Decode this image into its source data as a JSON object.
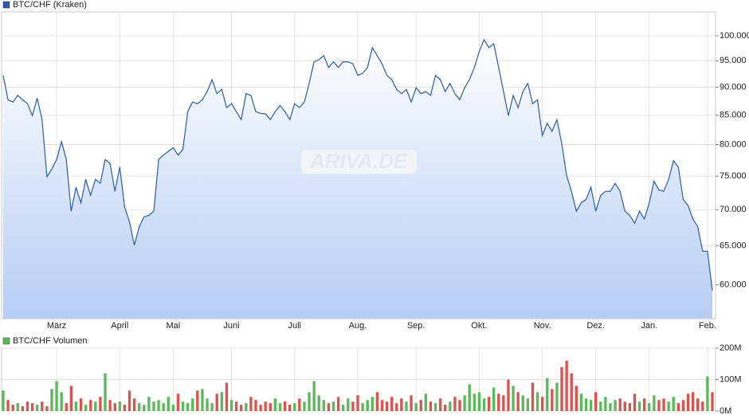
{
  "chart_data": [
    {
      "type": "line",
      "watermark": "ARIVA.DE",
      "log_scale": true,
      "grid": true,
      "legend": "top-left",
      "categories": [
        null,
        null,
        null,
        null,
        null,
        null,
        null,
        null,
        null,
        null,
        null,
        "März",
        null,
        null,
        null,
        null,
        null,
        null,
        null,
        null,
        null,
        null,
        null,
        null,
        "April",
        null,
        null,
        null,
        null,
        null,
        null,
        null,
        null,
        null,
        null,
        "Mai",
        null,
        null,
        null,
        null,
        null,
        null,
        null,
        null,
        null,
        null,
        null,
        "Juni",
        null,
        null,
        null,
        null,
        null,
        null,
        null,
        null,
        null,
        null,
        null,
        null,
        "Juli",
        null,
        null,
        null,
        null,
        null,
        null,
        null,
        null,
        null,
        null,
        null,
        null,
        "Aug.",
        null,
        null,
        null,
        null,
        null,
        null,
        null,
        null,
        null,
        null,
        null,
        "Sep.",
        null,
        null,
        null,
        null,
        null,
        null,
        null,
        null,
        null,
        null,
        null,
        null,
        "Okt.",
        null,
        null,
        null,
        null,
        null,
        null,
        null,
        null,
        null,
        null,
        null,
        null,
        "Nov.",
        null,
        null,
        null,
        null,
        null,
        null,
        null,
        null,
        null,
        null,
        "Dez.",
        null,
        null,
        null,
        null,
        null,
        null,
        null,
        null,
        null,
        null,
        "Jan.",
        null,
        null,
        null,
        null,
        null,
        null,
        null,
        null,
        null,
        null,
        null,
        "Feb.",
        null
      ],
      "series": [
        {
          "name": "BTC/CHF (Kraken)",
          "color": "#2a5caa",
          "values": [
            92200,
            87700,
            87300,
            88500,
            87700,
            87000,
            84900,
            88000,
            84200,
            74900,
            76100,
            77600,
            80500,
            77600,
            69800,
            73300,
            71000,
            74500,
            72100,
            74500,
            73900,
            77600,
            77000,
            72700,
            76400,
            70400,
            68300,
            65100,
            67600,
            69000,
            69200,
            69800,
            77600,
            78300,
            78900,
            79500,
            78300,
            79200,
            85600,
            87300,
            87000,
            87700,
            89200,
            91400,
            88800,
            89600,
            86300,
            87000,
            85600,
            84200,
            88800,
            88500,
            85600,
            85300,
            85200,
            84200,
            85600,
            86700,
            85600,
            84200,
            87000,
            86300,
            87300,
            90700,
            94800,
            95200,
            96000,
            93700,
            94800,
            93700,
            94800,
            94800,
            94400,
            92200,
            92600,
            93700,
            97600,
            96000,
            94400,
            92200,
            91400,
            89600,
            88800,
            89600,
            87300,
            89900,
            88800,
            89200,
            88500,
            92200,
            91400,
            89200,
            90700,
            88800,
            87700,
            89900,
            91400,
            93700,
            96800,
            99200,
            97600,
            98400,
            93700,
            89200,
            84900,
            88500,
            86300,
            89200,
            90700,
            87000,
            87700,
            81500,
            83600,
            82200,
            84200,
            80200,
            75100,
            72700,
            69800,
            71000,
            71500,
            73300,
            69800,
            72100,
            72700,
            72700,
            73900,
            72700,
            69800,
            69200,
            68100,
            69800,
            68700,
            71000,
            74200,
            72900,
            72700,
            74500,
            77400,
            76400,
            71500,
            70600,
            68700,
            67600,
            64300,
            64300,
            59300
          ]
        }
      ],
      "ylim": [
        56000,
        105000
      ],
      "yticks": [
        {
          "value": 60000,
          "label": "60.000"
        },
        {
          "value": 65000,
          "label": "65.000"
        },
        {
          "value": 70000,
          "label": "70.000"
        },
        {
          "value": 75000,
          "label": "75.000"
        },
        {
          "value": 80000,
          "label": "80.000"
        },
        {
          "value": 85000,
          "label": "85.000"
        },
        {
          "value": 90000,
          "label": "90.000"
        },
        {
          "value": 95000,
          "label": "95.000"
        },
        {
          "value": 100000,
          "label": "100.000"
        }
      ]
    },
    {
      "type": "bar",
      "grid": true,
      "legend": "top-left",
      "down_color": "#d9534f",
      "series": [
        {
          "name": "BTC/CHF Volumen",
          "color": "#5cb85c",
          "values": [
            65,
            35,
            20,
            25,
            15,
            30,
            25,
            20,
            30,
            15,
            70,
            95,
            60,
            25,
            80,
            30,
            40,
            20,
            35,
            30,
            45,
            120,
            35,
            25,
            30,
            20,
            65,
            40,
            25,
            20,
            45,
            30,
            35,
            25,
            45,
            20,
            55,
            30,
            25,
            40,
            65,
            70,
            40,
            25,
            55,
            60,
            90,
            35,
            30,
            20,
            25,
            45,
            35,
            20,
            30,
            25,
            40,
            25,
            30,
            20,
            25,
            40,
            30,
            60,
            95,
            50,
            35,
            25,
            30,
            45,
            20,
            40,
            30,
            50,
            25,
            35,
            45,
            60,
            35,
            30,
            45,
            25,
            40,
            30,
            50,
            25,
            35,
            55,
            30,
            25,
            40,
            20,
            30,
            45,
            35,
            50,
            85,
            55,
            60,
            40,
            45,
            75,
            55,
            50,
            100,
            80,
            60,
            50,
            40,
            90,
            60,
            45,
            105,
            70,
            90,
            140,
            160,
            120,
            80,
            55,
            40,
            35,
            60,
            30,
            45,
            25,
            35,
            40,
            30,
            25,
            55,
            30,
            40,
            25,
            50,
            35,
            40,
            30,
            45,
            25,
            35,
            55,
            60,
            40,
            30,
            110,
            60
          ]
        }
      ],
      "ylim": [
        0,
        200
      ],
      "yticks": [
        {
          "value": 0,
          "label": "0M"
        },
        {
          "value": 100,
          "label": "100M"
        },
        {
          "value": 200,
          "label": "200M"
        }
      ]
    }
  ]
}
